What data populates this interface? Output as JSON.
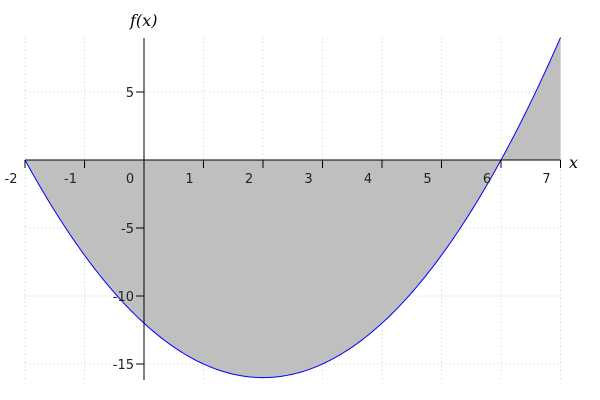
{
  "chart_data": {
    "type": "area",
    "function": "x^2 - 4x - 12",
    "xlabel": "x",
    "ylabel": "f(x)",
    "xlim": [
      -2,
      7
    ],
    "ylim": [
      -16,
      9
    ],
    "x_ticks": [
      -2,
      -1,
      0,
      1,
      2,
      3,
      4,
      5,
      6,
      7
    ],
    "y_ticks": [
      5,
      -5,
      -10,
      -15
    ],
    "x_tick_labels": [
      "-2",
      "-1",
      "0",
      "1",
      "2",
      "3",
      "4",
      "5",
      "6",
      "7"
    ],
    "y_tick_labels": [
      "5",
      "-5",
      "-10",
      "-15"
    ],
    "grid": true,
    "fill_to_axis": true,
    "colors": {
      "line": "#0000ff",
      "fill": "#bfbfbf",
      "grid": "#cccccc"
    }
  }
}
